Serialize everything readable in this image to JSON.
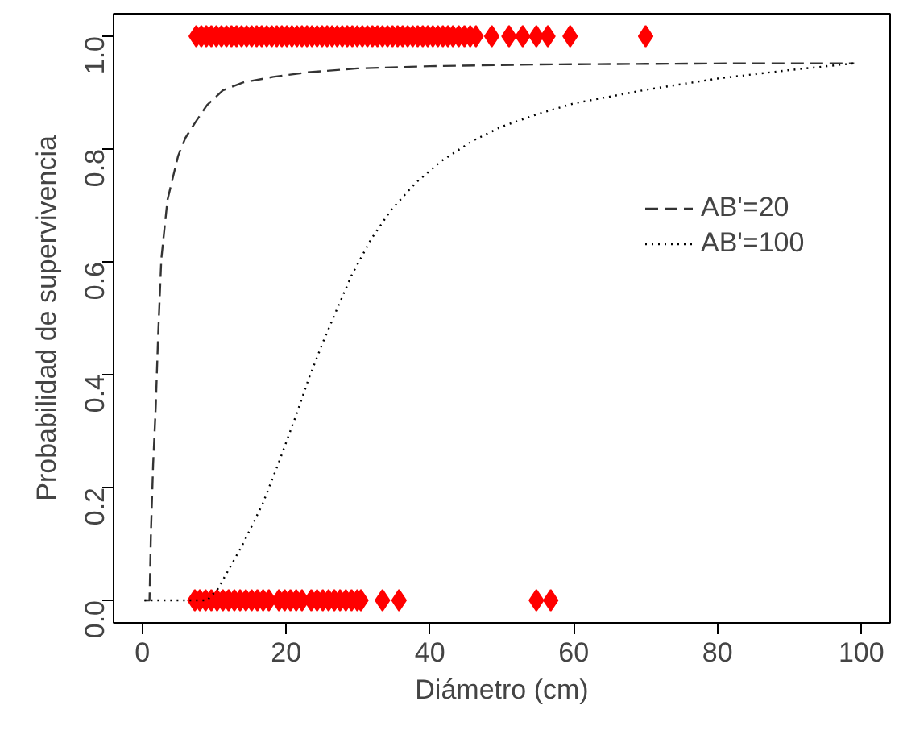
{
  "chart_data": {
    "type": "line",
    "xlabel": "Diámetro (cm)",
    "ylabel": "Probabilidad de supervivencia",
    "xlim": [
      -4,
      104
    ],
    "ylim": [
      -0.04,
      1.04
    ],
    "xticks": [
      0,
      20,
      40,
      60,
      80,
      100
    ],
    "yticks": [
      {
        "value": 0,
        "label": "0.0"
      },
      {
        "value": 0.2,
        "label": "0.2"
      },
      {
        "value": 0.4,
        "label": "0.4"
      },
      {
        "value": 0.6,
        "label": "0.6"
      },
      {
        "value": 0.8,
        "label": "0.8"
      },
      {
        "value": 1,
        "label": "1.0"
      }
    ],
    "grid": false,
    "legend": "right",
    "series": [
      {
        "type": "scatter",
        "marker": "diamond",
        "color": "#ff0000",
        "x": [
          7.5,
          8.2,
          8.9,
          9.6,
          10.3,
          11,
          11.7,
          12.4,
          13.1,
          13.8,
          14.5,
          15.2,
          15.9,
          16.6,
          17.3,
          18,
          18.7,
          19.4,
          20.1,
          20.8,
          21.5,
          22.2,
          22.9,
          23.6,
          24.3,
          25,
          25.7,
          26.4,
          27.1,
          27.8,
          28.5,
          29.2,
          29.9,
          30.6,
          31.3,
          32,
          32.7,
          33.4,
          34.1,
          34.8,
          35.5,
          36.2,
          36.9,
          37.6,
          38.3,
          39,
          39.7,
          40.4,
          41.1,
          41.8,
          42.5,
          43.2,
          44,
          44.8,
          45.6,
          46.4,
          48.6,
          51,
          52.9,
          54.8,
          56.4,
          59.5,
          70
        ],
        "values": [
          1,
          1,
          1,
          1,
          1,
          1,
          1,
          1,
          1,
          1,
          1,
          1,
          1,
          1,
          1,
          1,
          1,
          1,
          1,
          1,
          1,
          1,
          1,
          1,
          1,
          1,
          1,
          1,
          1,
          1,
          1,
          1,
          1,
          1,
          1,
          1,
          1,
          1,
          1,
          1,
          1,
          1,
          1,
          1,
          1,
          1,
          1,
          1,
          1,
          1,
          1,
          1,
          1,
          1,
          1,
          1,
          1,
          1,
          1,
          1,
          1,
          1,
          1
        ]
      },
      {
        "type": "scatter",
        "marker": "diamond",
        "color": "#ff0000",
        "x": [
          7.3,
          8,
          8.8,
          9.6,
          10.4,
          11.2,
          12,
          12.8,
          13.6,
          14.4,
          15.2,
          16,
          16.8,
          17.6,
          19,
          19.8,
          20.6,
          21.4,
          22.2,
          23.5,
          24.3,
          25.1,
          25.9,
          26.7,
          27.5,
          28.3,
          29.1,
          29.9,
          30.4,
          33.4,
          35.7,
          54.8,
          56.8
        ],
        "values": [
          0,
          0,
          0,
          0,
          0,
          0,
          0,
          0,
          0,
          0,
          0,
          0,
          0,
          0,
          0,
          0,
          0,
          0,
          0,
          0,
          0,
          0,
          0,
          0,
          0,
          0,
          0,
          0,
          0,
          0,
          0,
          0,
          0
        ]
      },
      {
        "name": "AB'=20",
        "line_style": "dashed",
        "color": "#333333",
        "x": [
          0.3,
          1,
          1.2,
          1.5,
          1.87,
          2.2,
          2.64,
          3.5,
          4.98,
          6,
          7.3,
          9,
          11.2,
          14,
          18.2,
          23,
          29.9,
          40,
          55,
          70,
          85,
          99
        ],
        "values": [
          0,
          0,
          0.12,
          0.24,
          0.344,
          0.47,
          0.605,
          0.71,
          0.788,
          0.82,
          0.846,
          0.878,
          0.904,
          0.918,
          0.928,
          0.936,
          0.943,
          0.947,
          0.95,
          0.951,
          0.952,
          0.952
        ]
      },
      {
        "name": "AB'=100",
        "line_style": "dotted",
        "color": "#000000",
        "x": [
          0.3,
          5,
          9,
          10.5,
          12,
          14,
          16.7,
          19,
          21.3,
          23.2,
          25.2,
          27.2,
          29.1,
          31.8,
          34.6,
          38,
          41.6,
          46,
          50,
          55,
          60,
          70,
          80,
          90,
          99
        ],
        "values": [
          0,
          0,
          0,
          0.02,
          0.054,
          0.1,
          0.17,
          0.245,
          0.325,
          0.395,
          0.46,
          0.52,
          0.576,
          0.64,
          0.692,
          0.74,
          0.779,
          0.815,
          0.84,
          0.862,
          0.881,
          0.905,
          0.925,
          0.94,
          0.952
        ]
      }
    ]
  }
}
